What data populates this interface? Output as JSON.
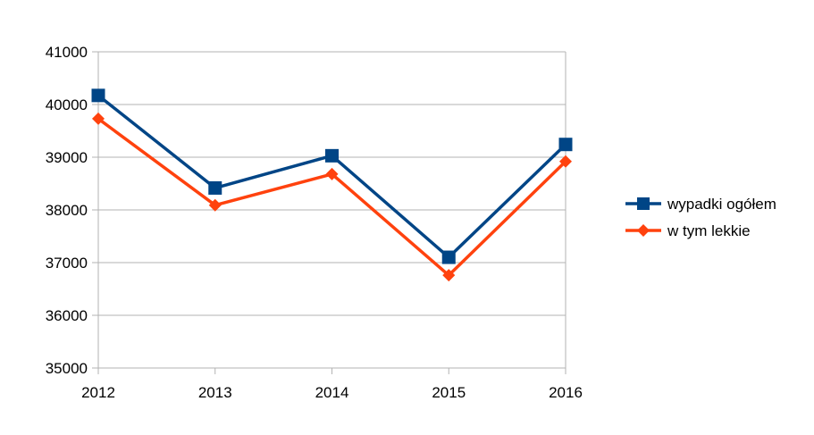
{
  "chart_data": {
    "type": "line",
    "categories": [
      "2012",
      "2013",
      "2014",
      "2015",
      "2016"
    ],
    "series": [
      {
        "name": "wypadki ogółem",
        "values": [
          40172,
          38416,
          39028,
          37101,
          39242
        ],
        "color": "#004586",
        "marker": "square"
      },
      {
        "name": "w tym lekkie",
        "values": [
          39730,
          38090,
          38680,
          36760,
          38920
        ],
        "color": "#ff420e",
        "marker": "diamond"
      }
    ],
    "ylim": [
      35000,
      41000
    ],
    "yticks": [
      "35000",
      "36000",
      "37000",
      "38000",
      "39000",
      "40000",
      "41000"
    ],
    "grid": true,
    "legend_position": "right"
  }
}
